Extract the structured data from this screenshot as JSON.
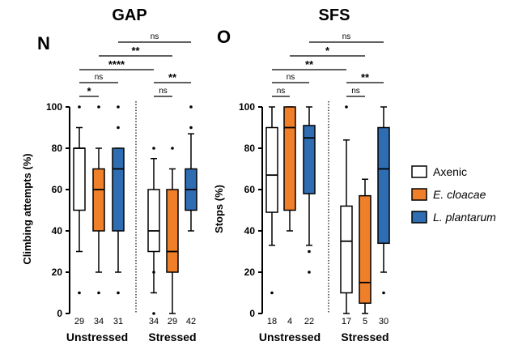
{
  "colors": {
    "axenic": "#ffffff",
    "cloacae": "#f07f2a",
    "plantarum": "#2f6db3",
    "stroke": "#000000"
  },
  "legend": {
    "items": [
      {
        "label": "Axenic",
        "color": "#ffffff",
        "italic": false
      },
      {
        "label": "E. cloacae",
        "color": "#f07f2a",
        "italic": true
      },
      {
        "label": "L. plantarum",
        "color": "#2f6db3",
        "italic": true
      }
    ]
  },
  "chart_data": [
    {
      "type": "box",
      "panel": "N",
      "title": "GAP",
      "ylabel": "Climbing attempts (%)",
      "ylim": [
        0,
        100
      ],
      "yticks": [
        0,
        20,
        40,
        60,
        80,
        100
      ],
      "groups": [
        "Unstressed",
        "Stressed"
      ],
      "boxes": [
        {
          "group": 0,
          "series": 0,
          "n": "29",
          "min": 30,
          "q1": 50,
          "median": 80,
          "q3": 80,
          "max": 90,
          "outliers": [
            10,
            100
          ]
        },
        {
          "group": 0,
          "series": 1,
          "n": "34",
          "min": 20,
          "q1": 40,
          "median": 60,
          "q3": 70,
          "max": 80,
          "outliers": [
            10,
            100
          ]
        },
        {
          "group": 0,
          "series": 2,
          "n": "31",
          "min": 20,
          "q1": 40,
          "median": 70,
          "q3": 80,
          "max": 80,
          "outliers": [
            10,
            90,
            100
          ]
        },
        {
          "group": 1,
          "series": 0,
          "n": "34",
          "min": 10,
          "q1": 30,
          "median": 40,
          "q3": 60,
          "max": 75,
          "outliers": [
            0,
            20,
            80
          ]
        },
        {
          "group": 1,
          "series": 1,
          "n": "29",
          "min": 0,
          "q1": 20,
          "median": 30,
          "q3": 60,
          "max": 70,
          "outliers": [
            80
          ]
        },
        {
          "group": 1,
          "series": 2,
          "n": "42",
          "min": 40,
          "q1": 50,
          "median": 60,
          "q3": 70,
          "max": 87,
          "outliers": [
            90,
            100
          ]
        }
      ],
      "significance": [
        {
          "label": "*",
          "from": 0,
          "to": 1
        },
        {
          "label": "ns",
          "from": 0,
          "to": 2
        },
        {
          "label": "****",
          "from": 0,
          "to": 3
        },
        {
          "label": "**",
          "from": 1,
          "to": 4
        },
        {
          "label": "ns",
          "from": 2,
          "to": 5
        },
        {
          "label": "ns",
          "from": 3,
          "to": 4
        },
        {
          "label": "**",
          "from": 3,
          "to": 5
        }
      ]
    },
    {
      "type": "box",
      "panel": "O",
      "title": "SFS",
      "ylabel": "Stops (%)",
      "ylim": [
        0,
        100
      ],
      "yticks": [
        0,
        20,
        40,
        60,
        80,
        100
      ],
      "groups": [
        "Unstressed",
        "Stressed"
      ],
      "boxes": [
        {
          "group": 0,
          "series": 0,
          "n": "18",
          "min": 33,
          "q1": 49,
          "median": 67,
          "q3": 90,
          "max": 100,
          "outliers": [
            10
          ]
        },
        {
          "group": 0,
          "series": 1,
          "n": "4",
          "min": 40,
          "q1": 50,
          "median": 90,
          "q3": 100,
          "max": 100,
          "outliers": []
        },
        {
          "group": 0,
          "series": 2,
          "n": "22",
          "min": 33,
          "q1": 58,
          "median": 85,
          "q3": 91,
          "max": 100,
          "outliers": [
            20,
            30
          ]
        },
        {
          "group": 1,
          "series": 0,
          "n": "17",
          "min": 0,
          "q1": 10,
          "median": 35,
          "q3": 52,
          "max": 84,
          "outliers": [
            100
          ]
        },
        {
          "group": 1,
          "series": 1,
          "n": "5",
          "min": 0,
          "q1": 5,
          "median": 15,
          "q3": 57,
          "max": 65,
          "outliers": []
        },
        {
          "group": 1,
          "series": 2,
          "n": "30",
          "min": 20,
          "q1": 34,
          "median": 70,
          "q3": 90,
          "max": 100,
          "outliers": [
            10
          ]
        }
      ],
      "significance": [
        {
          "label": "ns",
          "from": 0,
          "to": 1
        },
        {
          "label": "ns",
          "from": 0,
          "to": 2
        },
        {
          "label": "**",
          "from": 0,
          "to": 3
        },
        {
          "label": "*",
          "from": 1,
          "to": 4
        },
        {
          "label": "ns",
          "from": 2,
          "to": 5
        },
        {
          "label": "ns",
          "from": 3,
          "to": 4
        },
        {
          "label": "**",
          "from": 3,
          "to": 5
        }
      ]
    }
  ]
}
